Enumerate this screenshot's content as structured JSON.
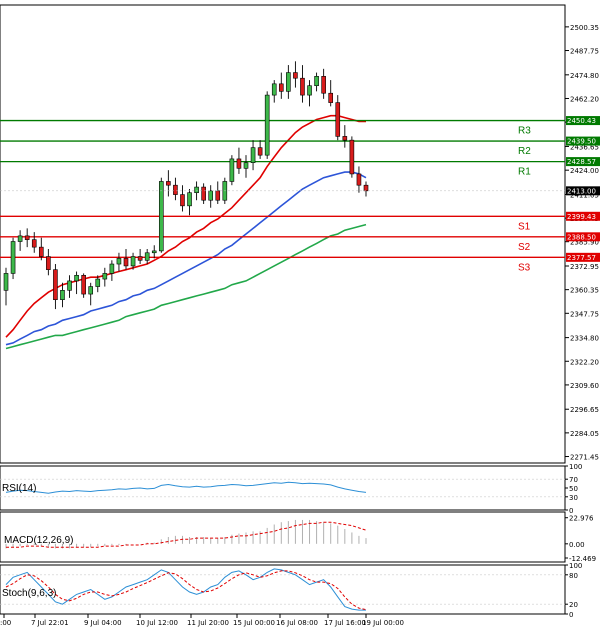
{
  "chart_data": {
    "type": "candlestick",
    "price_axis": {
      "min": 2268,
      "max": 2512,
      "ticks": [
        2500.35,
        2487.75,
        2474.8,
        2462.2,
        2449.6,
        2436.65,
        2424.0,
        2411.05,
        2398.45,
        2385.9,
        2372.95,
        2360.35,
        2347.75,
        2334.8,
        2322.2,
        2309.6,
        2296.65,
        2284.05,
        2271.45
      ],
      "tick_labels": [
        "2500.35",
        "2487.75",
        "2474.80",
        "2462.20",
        "2449.60",
        "2436.65",
        "2424.00",
        "2411.05",
        "2398.45",
        "2385.90",
        "2372.95",
        "2360.35",
        "2347.75",
        "2334.80",
        "2322.20",
        "2309.60",
        "2296.65",
        "2284.05",
        "2271.45"
      ]
    },
    "current_price": {
      "value": 2413.0,
      "label": "2413.00",
      "color": "#000000"
    },
    "levels": [
      {
        "name": "R3",
        "value": 2450.43,
        "label": "2450.43",
        "color": "#007a00"
      },
      {
        "name": "R2",
        "value": 2439.5,
        "label": "2439.50",
        "color": "#007a00"
      },
      {
        "name": "R1",
        "value": 2428.57,
        "label": "2428.57",
        "color": "#007a00"
      },
      {
        "name": "S1",
        "value": 2399.43,
        "label": "2399.43",
        "color": "#e00000"
      },
      {
        "name": "S2",
        "value": 2388.5,
        "label": "2388.50",
        "color": "#e00000"
      },
      {
        "name": "S3",
        "value": 2377.57,
        "label": "2377.57",
        "color": "#e00000"
      }
    ],
    "candles": [
      [
        2360,
        2372,
        2352,
        2369
      ],
      [
        2369,
        2388,
        2366,
        2386
      ],
      [
        2386,
        2392,
        2381,
        2389
      ],
      [
        2389,
        2393,
        2383,
        2387
      ],
      [
        2387,
        2391,
        2380,
        2383
      ],
      [
        2383,
        2388,
        2376,
        2378
      ],
      [
        2378,
        2382,
        2368,
        2371
      ],
      [
        2371,
        2374,
        2350,
        2355
      ],
      [
        2355,
        2364,
        2351,
        2360
      ],
      [
        2360,
        2368,
        2356,
        2365
      ],
      [
        2365,
        2370,
        2358,
        2368
      ],
      [
        2368,
        2369,
        2356,
        2358
      ],
      [
        2358,
        2364,
        2352,
        2362
      ],
      [
        2362,
        2368,
        2359,
        2366
      ],
      [
        2366,
        2372,
        2362,
        2369
      ],
      [
        2369,
        2376,
        2365,
        2374
      ],
      [
        2374,
        2380,
        2370,
        2377
      ],
      [
        2377,
        2382,
        2371,
        2373
      ],
      [
        2373,
        2380,
        2371,
        2378
      ],
      [
        2378,
        2382,
        2374,
        2376
      ],
      [
        2376,
        2382,
        2374,
        2380
      ],
      [
        2380,
        2384,
        2377,
        2381
      ],
      [
        2381,
        2420,
        2380,
        2418
      ],
      [
        2418,
        2424,
        2410,
        2416
      ],
      [
        2416,
        2420,
        2408,
        2411
      ],
      [
        2411,
        2416,
        2402,
        2405
      ],
      [
        2405,
        2414,
        2400,
        2412
      ],
      [
        2412,
        2418,
        2408,
        2415
      ],
      [
        2415,
        2417,
        2406,
        2408
      ],
      [
        2408,
        2416,
        2404,
        2413
      ],
      [
        2413,
        2418,
        2406,
        2408
      ],
      [
        2408,
        2420,
        2406,
        2418
      ],
      [
        2418,
        2432,
        2416,
        2430
      ],
      [
        2430,
        2436,
        2422,
        2425
      ],
      [
        2425,
        2432,
        2420,
        2428
      ],
      [
        2428,
        2440,
        2424,
        2436
      ],
      [
        2436,
        2440,
        2430,
        2432
      ],
      [
        2432,
        2466,
        2430,
        2464
      ],
      [
        2464,
        2472,
        2460,
        2470
      ],
      [
        2470,
        2476,
        2462,
        2466
      ],
      [
        2466,
        2480,
        2462,
        2476
      ],
      [
        2476,
        2482,
        2468,
        2473
      ],
      [
        2473,
        2480,
        2460,
        2464
      ],
      [
        2464,
        2472,
        2458,
        2469
      ],
      [
        2469,
        2476,
        2466,
        2474
      ],
      [
        2474,
        2478,
        2462,
        2465
      ],
      [
        2465,
        2472,
        2458,
        2460
      ],
      [
        2460,
        2464,
        2440,
        2442
      ],
      [
        2442,
        2448,
        2436,
        2440
      ],
      [
        2440,
        2442,
        2420,
        2422
      ],
      [
        2422,
        2426,
        2412,
        2416
      ],
      [
        2416,
        2418,
        2410,
        2413
      ]
    ],
    "ma_fast": [
      2335,
      2339,
      2344,
      2349,
      2353,
      2356,
      2359,
      2361,
      2363,
      2364,
      2365,
      2366,
      2367,
      2367,
      2368,
      2369,
      2370,
      2371,
      2372,
      2373,
      2374,
      2376,
      2378,
      2381,
      2383,
      2386,
      2388,
      2391,
      2393,
      2396,
      2398,
      2401,
      2404,
      2408,
      2412,
      2416,
      2420,
      2426,
      2431,
      2436,
      2440,
      2444,
      2447,
      2449,
      2451,
      2452,
      2453,
      2453,
      2452,
      2451,
      2450,
      2450
    ],
    "ma_mid": [
      2331,
      2332,
      2334,
      2336,
      2338,
      2339,
      2341,
      2342,
      2344,
      2345,
      2346,
      2347,
      2349,
      2350,
      2351,
      2352,
      2354,
      2355,
      2357,
      2358,
      2360,
      2361,
      2363,
      2365,
      2367,
      2369,
      2371,
      2373,
      2375,
      2377,
      2379,
      2382,
      2384,
      2387,
      2390,
      2393,
      2396,
      2399,
      2402,
      2405,
      2408,
      2411,
      2414,
      2416,
      2418,
      2420,
      2421,
      2422,
      2423,
      2423,
      2422,
      2420
    ],
    "ma_slow": [
      2329,
      2330,
      2331,
      2332,
      2333,
      2334,
      2335,
      2336,
      2336,
      2337,
      2338,
      2339,
      2340,
      2341,
      2342,
      2343,
      2344,
      2346,
      2347,
      2348,
      2349,
      2350,
      2352,
      2353,
      2354,
      2355,
      2356,
      2357,
      2358,
      2359,
      2360,
      2361,
      2363,
      2364,
      2365,
      2367,
      2369,
      2371,
      2373,
      2375,
      2377,
      2379,
      2381,
      2383,
      2385,
      2387,
      2389,
      2390,
      2392,
      2393,
      2394,
      2395
    ],
    "x_labels": [
      ":00",
      "7 Jul 22:01",
      "9 Jul 04:00",
      "10 Jul 12:00",
      "11 Jul 20:00",
      "15 Jul 00:00",
      "16 Jul 08:00",
      "17 Jul 16:00",
      "19 Jul 00:00"
    ],
    "rsi": {
      "label": "RSI(14)",
      "ticks": [
        "100",
        "70",
        "50",
        "30",
        "0"
      ],
      "values": [
        40,
        43,
        45,
        44,
        42,
        40,
        38,
        41,
        43,
        42,
        44,
        43,
        42,
        44,
        45,
        46,
        48,
        47,
        49,
        50,
        48,
        49,
        56,
        58,
        55,
        53,
        52,
        54,
        52,
        53,
        55,
        56,
        58,
        57,
        55,
        56,
        58,
        60,
        62,
        61,
        63,
        62,
        60,
        61,
        60,
        59,
        57,
        52,
        48,
        45,
        42,
        40
      ]
    },
    "macd": {
      "label": "MACD(12,26,9)",
      "ticks": [
        "22.976",
        "0.00",
        "-12.469"
      ],
      "histogram": [
        -4,
        -3,
        -2,
        -1,
        -1,
        -2,
        -3,
        -4,
        -4,
        -4,
        -3,
        -3,
        -3,
        -2,
        -2,
        -1,
        -1,
        -1,
        0,
        0,
        1,
        1,
        4,
        6,
        7,
        7,
        6,
        6,
        6,
        5,
        5,
        6,
        8,
        9,
        10,
        11,
        11,
        14,
        17,
        19,
        20,
        21,
        21,
        21,
        20,
        19,
        18,
        16,
        13,
        10,
        7,
        5
      ],
      "signal": [
        -3,
        -3,
        -3,
        -2,
        -2,
        -2,
        -3,
        -3,
        -3,
        -3,
        -3,
        -3,
        -3,
        -3,
        -2,
        -2,
        -2,
        -1,
        -1,
        -1,
        0,
        0,
        1,
        2,
        3,
        4,
        4,
        5,
        5,
        5,
        5,
        5,
        6,
        7,
        7,
        8,
        9,
        10,
        11,
        13,
        14,
        16,
        17,
        18,
        18,
        19,
        19,
        18,
        17,
        16,
        14,
        12
      ]
    },
    "stoch": {
      "label": "Stoch(9,6,3)",
      "ticks": [
        "100",
        "80",
        "20",
        "0"
      ],
      "k": [
        60,
        75,
        80,
        85,
        70,
        55,
        40,
        25,
        20,
        30,
        40,
        45,
        50,
        40,
        30,
        35,
        45,
        55,
        60,
        65,
        70,
        80,
        90,
        85,
        70,
        55,
        45,
        40,
        45,
        55,
        60,
        75,
        85,
        88,
        80,
        70,
        75,
        85,
        92,
        90,
        85,
        80,
        70,
        60,
        65,
        70,
        55,
        35,
        15,
        10,
        8,
        8
      ],
      "d": [
        55,
        62,
        72,
        80,
        78,
        68,
        55,
        40,
        30,
        27,
        32,
        40,
        45,
        45,
        40,
        37,
        40,
        45,
        52,
        58,
        64,
        71,
        78,
        84,
        82,
        72,
        60,
        50,
        45,
        47,
        53,
        62,
        72,
        80,
        84,
        80,
        75,
        78,
        84,
        88,
        88,
        84,
        78,
        70,
        65,
        65,
        62,
        52,
        35,
        20,
        12,
        9
      ]
    }
  }
}
